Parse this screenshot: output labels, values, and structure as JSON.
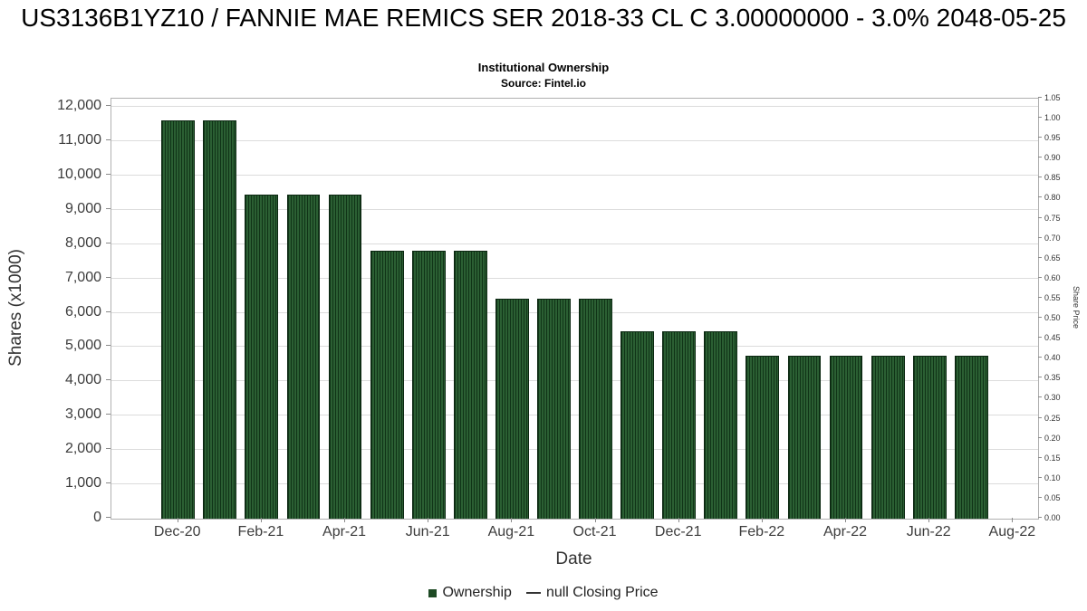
{
  "header": {
    "title": "US3136B1YZ10 / FANNIE MAE REMICS SER 2018-33 CL C 3.00000000 - 3.0% 2048-05-25",
    "subtitle": "Institutional Ownership",
    "source": "Source: Fintel.io"
  },
  "chart_data": {
    "type": "bar",
    "title": "Institutional Ownership",
    "xlabel": "Date",
    "ylabel_left": "Shares (x1000)",
    "ylabel_right": "Share Price",
    "grid": true,
    "legend_position": "bottom",
    "x_range_months": [
      -1.6,
      20.6
    ],
    "bar_width_months": 0.8,
    "ylim_left": [
      0,
      12240
    ],
    "ylim_right": [
      0,
      1.05
    ],
    "x_ticks": [
      {
        "m": 0,
        "label": "Dec-20"
      },
      {
        "m": 2,
        "label": "Feb-21"
      },
      {
        "m": 4,
        "label": "Apr-21"
      },
      {
        "m": 6,
        "label": "Jun-21"
      },
      {
        "m": 8,
        "label": "Aug-21"
      },
      {
        "m": 10,
        "label": "Oct-21"
      },
      {
        "m": 12,
        "label": "Dec-21"
      },
      {
        "m": 14,
        "label": "Feb-22"
      },
      {
        "m": 16,
        "label": "Apr-22"
      },
      {
        "m": 18,
        "label": "Jun-22"
      },
      {
        "m": 20,
        "label": "Aug-22"
      }
    ],
    "y_left_ticks": [
      {
        "v": 0,
        "label": "0"
      },
      {
        "v": 1000,
        "label": "1,000"
      },
      {
        "v": 2000,
        "label": "2,000"
      },
      {
        "v": 3000,
        "label": "3,000"
      },
      {
        "v": 4000,
        "label": "4,000"
      },
      {
        "v": 5000,
        "label": "5,000"
      },
      {
        "v": 6000,
        "label": "6,000"
      },
      {
        "v": 7000,
        "label": "7,000"
      },
      {
        "v": 8000,
        "label": "8,000"
      },
      {
        "v": 9000,
        "label": "9,000"
      },
      {
        "v": 10000,
        "label": "10,000"
      },
      {
        "v": 11000,
        "label": "11,000"
      },
      {
        "v": 12000,
        "label": "12,000"
      }
    ],
    "y_right_ticks": [
      {
        "v": 0.0,
        "label": "0.00"
      },
      {
        "v": 0.05,
        "label": "0.05"
      },
      {
        "v": 0.1,
        "label": "0.10"
      },
      {
        "v": 0.15,
        "label": "0.15"
      },
      {
        "v": 0.2,
        "label": "0.20"
      },
      {
        "v": 0.25,
        "label": "0.25"
      },
      {
        "v": 0.3,
        "label": "0.30"
      },
      {
        "v": 0.35,
        "label": "0.35"
      },
      {
        "v": 0.4,
        "label": "0.40"
      },
      {
        "v": 0.45,
        "label": "0.45"
      },
      {
        "v": 0.5,
        "label": "0.50"
      },
      {
        "v": 0.55,
        "label": "0.55"
      },
      {
        "v": 0.6,
        "label": "0.60"
      },
      {
        "v": 0.65,
        "label": "0.65"
      },
      {
        "v": 0.7,
        "label": "0.70"
      },
      {
        "v": 0.75,
        "label": "0.75"
      },
      {
        "v": 0.8,
        "label": "0.80"
      },
      {
        "v": 0.85,
        "label": "0.85"
      },
      {
        "v": 0.9,
        "label": "0.90"
      },
      {
        "v": 0.95,
        "label": "0.95"
      },
      {
        "v": 1.0,
        "label": "1.00"
      },
      {
        "v": 1.05,
        "label": "1.05"
      }
    ],
    "series": [
      {
        "name": "Ownership",
        "type": "bar",
        "color": "#1e4a24",
        "x": [
          "Dec-20",
          "Jan-21",
          "Feb-21",
          "Mar-21",
          "Apr-21",
          "May-21",
          "Jun-21",
          "Jul-21",
          "Aug-21",
          "Sep-21",
          "Oct-21",
          "Nov-21",
          "Dec-21",
          "Jan-22",
          "Feb-22",
          "Mar-22",
          "Apr-22",
          "May-22",
          "Jun-22",
          "Jul-22"
        ],
        "values": [
          11600,
          11600,
          9450,
          9450,
          9450,
          7800,
          7800,
          7800,
          6400,
          6400,
          6400,
          5450,
          5450,
          5450,
          4750,
          4750,
          4750,
          4750,
          4750,
          4750
        ]
      },
      {
        "name": "null Closing Price",
        "type": "line",
        "color": "#333333",
        "values": []
      }
    ],
    "legend": [
      {
        "label": "Ownership",
        "swatch": "square",
        "color": "#1e4a24"
      },
      {
        "label": "null Closing Price",
        "swatch": "line",
        "color": "#333333"
      }
    ]
  },
  "colors": {
    "bar": "#1e4a24",
    "bar_stripe_dark": "#103417",
    "bar_border": "#0b2711",
    "gridline": "#dcdcdc",
    "plot_border": "#b0b0b0",
    "text": "#333333"
  }
}
